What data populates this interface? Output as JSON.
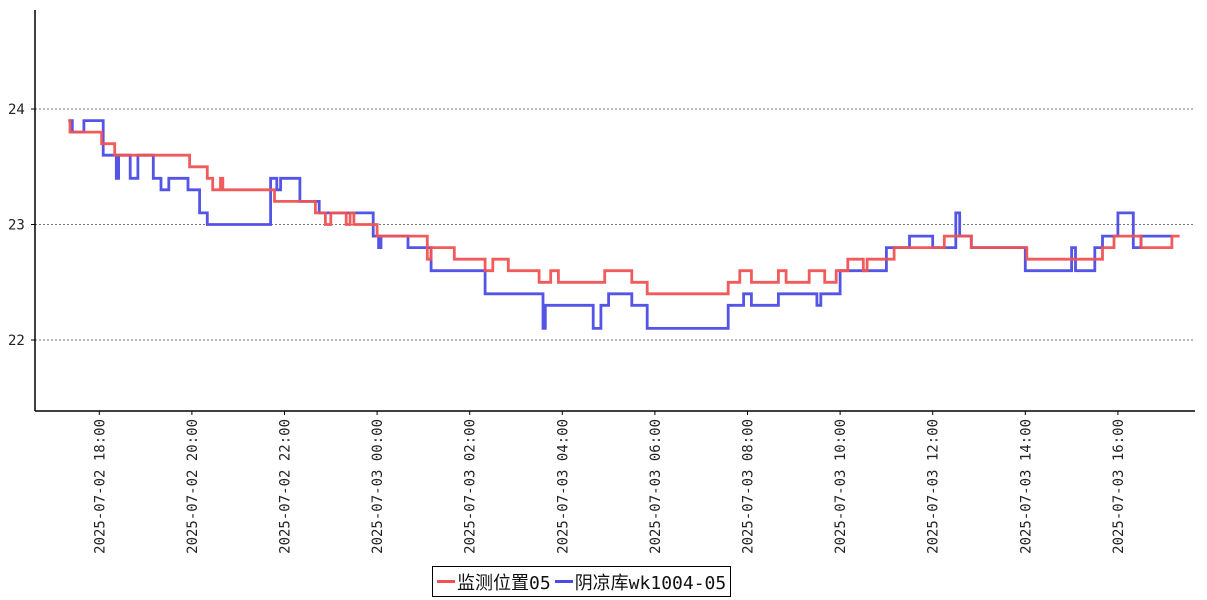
{
  "chart_data": {
    "type": "line",
    "title": "",
    "xlabel": "",
    "ylabel": "",
    "ylim": [
      21.4,
      24.9
    ],
    "grid": "horizontal-dotted",
    "legend_position": "bottom-center",
    "y_ticks": [
      "22",
      "23",
      "24"
    ],
    "x_tick_labels": [
      "2025-07-02 18:00",
      "2025-07-02 20:00",
      "2025-07-02 22:00",
      "2025-07-03 00:00",
      "2025-07-03 02:00",
      "2025-07-03 04:00",
      "2025-07-03 06:00",
      "2025-07-03 08:00",
      "2025-07-03 10:00",
      "2025-07-03 12:00",
      "2025-07-03 14:00",
      "2025-07-03 16:00"
    ],
    "series": [
      {
        "name": "监测位置05",
        "color": "#f05252",
        "points": [
          [
            "2025-07-02 17:20",
            23.9
          ],
          [
            "2025-07-02 17:22",
            23.8
          ],
          [
            "2025-07-02 18:00",
            23.8
          ],
          [
            "2025-07-02 18:03",
            23.7
          ],
          [
            "2025-07-02 18:20",
            23.6
          ],
          [
            "2025-07-02 19:55",
            23.6
          ],
          [
            "2025-07-02 19:57",
            23.5
          ],
          [
            "2025-07-02 20:20",
            23.4
          ],
          [
            "2025-07-02 20:27",
            23.3
          ],
          [
            "2025-07-02 20:37",
            23.4
          ],
          [
            "2025-07-02 20:40",
            23.3
          ],
          [
            "2025-07-02 21:40",
            23.3
          ],
          [
            "2025-07-02 21:47",
            23.2
          ],
          [
            "2025-07-02 22:40",
            23.1
          ],
          [
            "2025-07-02 22:53",
            23.0
          ],
          [
            "2025-07-02 23:00",
            23.1
          ],
          [
            "2025-07-02 23:20",
            23.0
          ],
          [
            "2025-07-02 23:25",
            23.1
          ],
          [
            "2025-07-02 23:30",
            23.0
          ],
          [
            "2025-07-03 00:00",
            22.9
          ],
          [
            "2025-07-03 01:00",
            22.9
          ],
          [
            "2025-07-03 01:05",
            22.7
          ],
          [
            "2025-07-03 01:10",
            22.8
          ],
          [
            "2025-07-03 01:40",
            22.7
          ],
          [
            "2025-07-03 02:20",
            22.6
          ],
          [
            "2025-07-03 02:30",
            22.7
          ],
          [
            "2025-07-03 02:50",
            22.6
          ],
          [
            "2025-07-03 03:30",
            22.5
          ],
          [
            "2025-07-03 03:45",
            22.6
          ],
          [
            "2025-07-03 03:55",
            22.5
          ],
          [
            "2025-07-03 04:30",
            22.5
          ],
          [
            "2025-07-03 04:55",
            22.6
          ],
          [
            "2025-07-03 05:30",
            22.5
          ],
          [
            "2025-07-03 05:50",
            22.4
          ],
          [
            "2025-07-03 07:30",
            22.4
          ],
          [
            "2025-07-03 07:35",
            22.5
          ],
          [
            "2025-07-03 07:50",
            22.6
          ],
          [
            "2025-07-03 08:05",
            22.5
          ],
          [
            "2025-07-03 08:40",
            22.6
          ],
          [
            "2025-07-03 08:50",
            22.5
          ],
          [
            "2025-07-03 09:20",
            22.6
          ],
          [
            "2025-07-03 09:40",
            22.5
          ],
          [
            "2025-07-03 09:55",
            22.6
          ],
          [
            "2025-07-03 10:10",
            22.7
          ],
          [
            "2025-07-03 10:30",
            22.6
          ],
          [
            "2025-07-03 10:35",
            22.7
          ],
          [
            "2025-07-03 11:10",
            22.8
          ],
          [
            "2025-07-03 12:15",
            22.9
          ],
          [
            "2025-07-03 12:50",
            22.8
          ],
          [
            "2025-07-03 14:00",
            22.8
          ],
          [
            "2025-07-03 14:02",
            22.7
          ],
          [
            "2025-07-03 15:30",
            22.7
          ],
          [
            "2025-07-03 15:40",
            22.8
          ],
          [
            "2025-07-03 15:55",
            22.9
          ],
          [
            "2025-07-03 16:30",
            22.8
          ],
          [
            "2025-07-03 17:10",
            22.9
          ],
          [
            "2025-07-03 17:20",
            22.9
          ]
        ]
      },
      {
        "name": "阴凉库wk1004-05",
        "color": "#4b4be6",
        "points": [
          [
            "2025-07-02 17:20",
            23.9
          ],
          [
            "2025-07-02 17:25",
            23.8
          ],
          [
            "2025-07-02 17:40",
            23.9
          ],
          [
            "2025-07-02 18:00",
            23.9
          ],
          [
            "2025-07-02 18:05",
            23.6
          ],
          [
            "2025-07-02 18:20",
            23.6
          ],
          [
            "2025-07-02 18:22",
            23.4
          ],
          [
            "2025-07-02 18:25",
            23.6
          ],
          [
            "2025-07-02 18:40",
            23.4
          ],
          [
            "2025-07-02 18:50",
            23.6
          ],
          [
            "2025-07-02 19:10",
            23.4
          ],
          [
            "2025-07-02 19:20",
            23.3
          ],
          [
            "2025-07-02 19:30",
            23.4
          ],
          [
            "2025-07-02 19:55",
            23.3
          ],
          [
            "2025-07-02 20:10",
            23.1
          ],
          [
            "2025-07-02 20:20",
            23.0
          ],
          [
            "2025-07-02 21:40",
            23.0
          ],
          [
            "2025-07-02 21:42",
            23.4
          ],
          [
            "2025-07-02 21:50",
            23.3
          ],
          [
            "2025-07-02 21:55",
            23.4
          ],
          [
            "2025-07-02 22:20",
            23.2
          ],
          [
            "2025-07-02 22:45",
            23.1
          ],
          [
            "2025-07-02 23:55",
            22.9
          ],
          [
            "2025-07-03 00:02",
            22.8
          ],
          [
            "2025-07-03 00:05",
            22.9
          ],
          [
            "2025-07-03 00:40",
            22.8
          ],
          [
            "2025-07-03 01:10",
            22.6
          ],
          [
            "2025-07-03 02:20",
            22.4
          ],
          [
            "2025-07-03 03:35",
            22.1
          ],
          [
            "2025-07-03 03:38",
            22.3
          ],
          [
            "2025-07-03 04:40",
            22.1
          ],
          [
            "2025-07-03 04:50",
            22.3
          ],
          [
            "2025-07-03 05:00",
            22.4
          ],
          [
            "2025-07-03 05:30",
            22.3
          ],
          [
            "2025-07-03 05:50",
            22.1
          ],
          [
            "2025-07-03 07:30",
            22.1
          ],
          [
            "2025-07-03 07:35",
            22.3
          ],
          [
            "2025-07-03 07:55",
            22.4
          ],
          [
            "2025-07-03 08:05",
            22.3
          ],
          [
            "2025-07-03 08:40",
            22.4
          ],
          [
            "2025-07-03 09:30",
            22.3
          ],
          [
            "2025-07-03 09:35",
            22.4
          ],
          [
            "2025-07-03 10:00",
            22.6
          ],
          [
            "2025-07-03 11:00",
            22.8
          ],
          [
            "2025-07-03 11:30",
            22.9
          ],
          [
            "2025-07-03 12:00",
            22.8
          ],
          [
            "2025-07-03 12:30",
            23.1
          ],
          [
            "2025-07-03 12:35",
            22.9
          ],
          [
            "2025-07-03 12:50",
            22.8
          ],
          [
            "2025-07-03 14:00",
            22.6
          ],
          [
            "2025-07-03 15:00",
            22.8
          ],
          [
            "2025-07-03 15:05",
            22.6
          ],
          [
            "2025-07-03 15:30",
            22.8
          ],
          [
            "2025-07-03 15:40",
            22.9
          ],
          [
            "2025-07-03 16:00",
            23.1
          ],
          [
            "2025-07-03 16:20",
            22.8
          ],
          [
            "2025-07-03 16:30",
            22.9
          ],
          [
            "2025-07-03 17:10",
            22.9
          ]
        ]
      }
    ]
  },
  "legend": {
    "items": [
      {
        "label": "监测位置05",
        "color": "#f05252"
      },
      {
        "label": "阴凉库wk1004-05",
        "color": "#4b4be6"
      }
    ]
  }
}
